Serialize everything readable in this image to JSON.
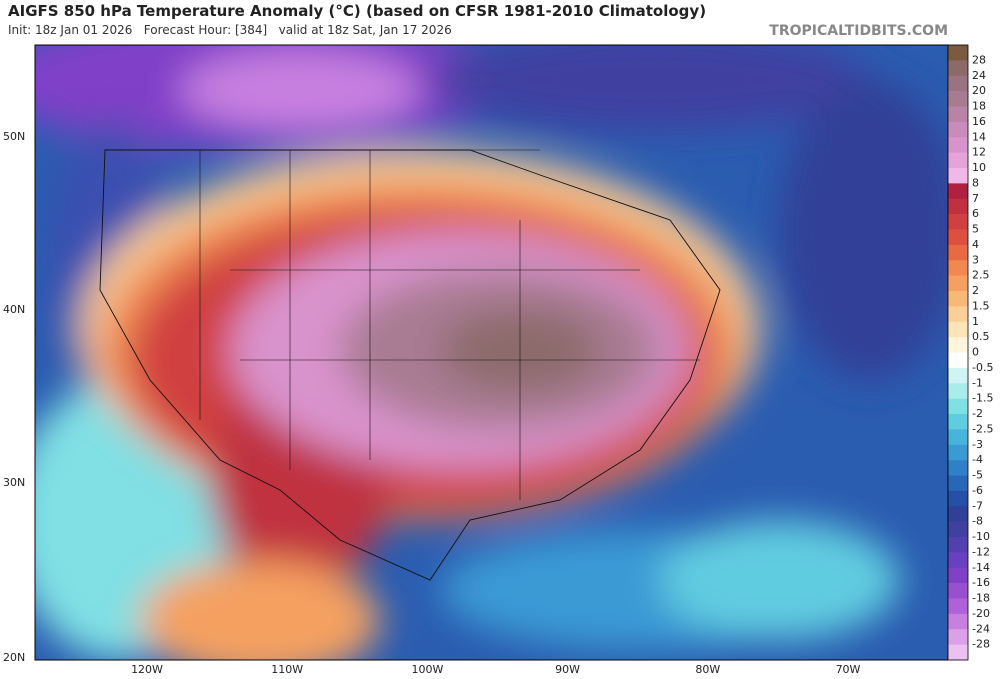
{
  "header": {
    "title": "AIGFS 850 hPa Temperature Anomaly (°C) (based on CFSR 1981-2010 Climatology)",
    "subtitle": "Init: 18z Jan 01 2026   Forecast Hour: [384]   valid at 18z Sat, Jan 17 2026",
    "credit": "TROPICALTIDBITS.COM"
  },
  "map": {
    "lat_labels": [
      "50N",
      "40N",
      "30N",
      "20N"
    ],
    "lon_labels": [
      "120W",
      "110W",
      "100W",
      "90W",
      "80W",
      "70W"
    ]
  },
  "colorbar": {
    "labels": [
      "28",
      "24",
      "20",
      "18",
      "16",
      "14",
      "12",
      "10",
      "8",
      "7",
      "6",
      "5",
      "4",
      "3",
      "2.5",
      "2",
      "1.5",
      "1",
      "0.5",
      "0",
      "-0.5",
      "-1",
      "-1.5",
      "-2",
      "-2.5",
      "-3",
      "-4",
      "-5",
      "-6",
      "-7",
      "-8",
      "-10",
      "-12",
      "-14",
      "-16",
      "-18",
      "-20",
      "-24",
      "-28"
    ],
    "colors": [
      "#7b5a3f",
      "#8c6a6a",
      "#9b7282",
      "#a97b93",
      "#b883a7",
      "#c98bbb",
      "#d993cc",
      "#e6a3da",
      "#f0b8e8",
      "#b02040",
      "#c03040",
      "#d04040",
      "#dd5040",
      "#e86a45",
      "#f08850",
      "#f5a060",
      "#f8b878",
      "#fad098",
      "#fce4b8",
      "#fff4dc",
      "#ffffff",
      "#d0f4f4",
      "#a8ecec",
      "#80e0e4",
      "#60cce0",
      "#48b4dc",
      "#3a9ad4",
      "#2f80c8",
      "#2866b8",
      "#2450a8",
      "#304098",
      "#4040a0",
      "#5040b0",
      "#6840c0",
      "#8040c8",
      "#9850d0",
      "#b060d8",
      "#c880e0",
      "#dca0e8",
      "#ecc0f0"
    ]
  }
}
